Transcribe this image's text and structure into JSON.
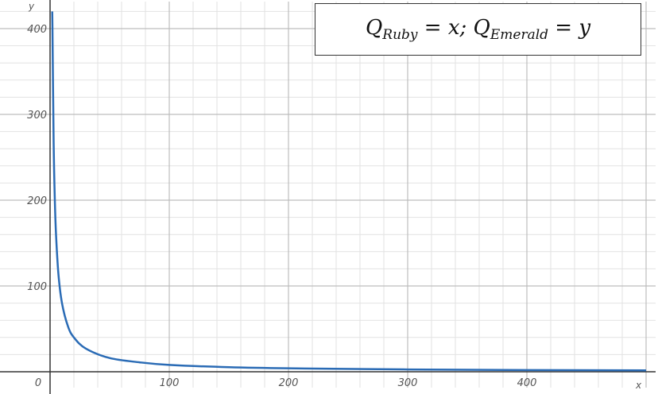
{
  "chart_data": {
    "type": "line",
    "title": "",
    "xlabel": "x",
    "ylabel": "y",
    "xlim": [
      0,
      500
    ],
    "ylim": [
      0,
      420
    ],
    "x_ticks": [
      0,
      100,
      200,
      300,
      400
    ],
    "y_ticks": [
      100,
      200,
      300,
      400
    ],
    "grid": true,
    "legend_placement": "top-right",
    "annotation": {
      "var1": "Q",
      "sub1": "Ruby",
      "eq1": "= x;",
      "var2": "Q",
      "sub2": "Emerald",
      "eq2": "= y"
    },
    "series": [
      {
        "color": "#2a6bb5",
        "x": [
          1.8,
          2,
          3,
          4,
          5,
          7,
          10,
          15,
          20,
          30,
          50,
          75,
          100,
          150,
          200,
          300,
          400,
          500
        ],
        "y": [
          420,
          400,
          267,
          200,
          160,
          114,
          80,
          53,
          40,
          27,
          16,
          11,
          8,
          5.3,
          4,
          2.7,
          2,
          1.6
        ]
      }
    ]
  }
}
